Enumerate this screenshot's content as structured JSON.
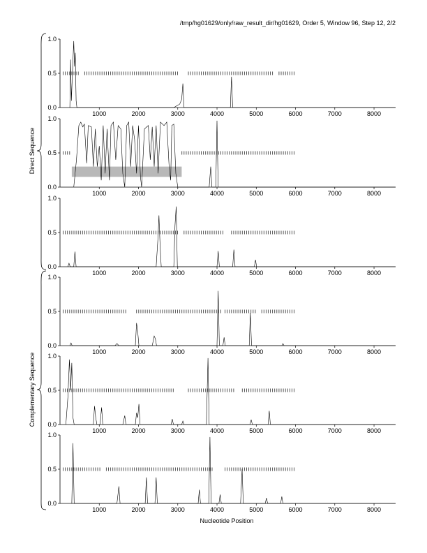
{
  "header": "/tmp/hg01629/only/raw_result_dir/hg01629, Order 5, Window 96, Step 12, 2/2",
  "xlabel": "Nucleotide Position",
  "group_labels": [
    "Direct Sequence",
    "Complementary Sequence"
  ],
  "chart_data": {
    "type": "line",
    "x_ticks": [
      1000,
      2000,
      3000,
      4000,
      5000,
      6000,
      7000,
      8000
    ],
    "y_ticks": [
      "0.0",
      "0.5",
      "1.0"
    ],
    "xlim": [
      0,
      8550
    ],
    "ylim": [
      0,
      1
    ],
    "panels": [
      {
        "group": "Direct Sequence",
        "points": [
          [
            250,
            0
          ],
          [
            270,
            0.7
          ],
          [
            290,
            0.1
          ],
          [
            320,
            0.55
          ],
          [
            350,
            0.97
          ],
          [
            370,
            0.6
          ],
          [
            390,
            0.8
          ],
          [
            410,
            0.1
          ],
          [
            430,
            0
          ],
          [
            2900,
            0
          ],
          [
            3050,
            0.05
          ],
          [
            3100,
            0.12
          ],
          [
            3130,
            0.35
          ],
          [
            3160,
            0
          ],
          [
            4340,
            0
          ],
          [
            4370,
            0.45
          ],
          [
            4400,
            0
          ],
          [
            8550,
            0
          ]
        ],
        "dashes": {
          "from": 80,
          "to": 6000,
          "step": 55,
          "y": 0.5,
          "skip": [
            [
              480,
              600
            ],
            [
              3000,
              3250
            ],
            [
              5450,
              5550
            ]
          ]
        },
        "band": null
      },
      {
        "group": "Direct Sequence",
        "points": [
          [
            350,
            0
          ],
          [
            420,
            0.4
          ],
          [
            480,
            0.9
          ],
          [
            530,
            0.95
          ],
          [
            580,
            0.88
          ],
          [
            620,
            0.92
          ],
          [
            680,
            0.35
          ],
          [
            720,
            0.9
          ],
          [
            800,
            0.88
          ],
          [
            850,
            0.3
          ],
          [
            900,
            0.85
          ],
          [
            950,
            0.3
          ],
          [
            1000,
            0.6
          ],
          [
            1050,
            0.1
          ],
          [
            1100,
            0.9
          ],
          [
            1150,
            0.2
          ],
          [
            1200,
            0.85
          ],
          [
            1260,
            0.1
          ],
          [
            1300,
            0.9
          ],
          [
            1360,
            0.95
          ],
          [
            1420,
            0.4
          ],
          [
            1480,
            0.9
          ],
          [
            1550,
            0.85
          ],
          [
            1600,
            0.2
          ],
          [
            1650,
            0
          ],
          [
            1700,
            0.9
          ],
          [
            1750,
            0.95
          ],
          [
            1800,
            0.3
          ],
          [
            1850,
            0.9
          ],
          [
            1900,
            0.7
          ],
          [
            1950,
            0.2
          ],
          [
            2000,
            0.9
          ],
          [
            2050,
            0.15
          ],
          [
            2080,
            0
          ],
          [
            2150,
            0.85
          ],
          [
            2250,
            0.9
          ],
          [
            2300,
            0.4
          ],
          [
            2350,
            0.88
          ],
          [
            2400,
            0.3
          ],
          [
            2450,
            0.9
          ],
          [
            2500,
            0.2
          ],
          [
            2560,
            0.95
          ],
          [
            2650,
            0.9
          ],
          [
            2720,
            0.95
          ],
          [
            2780,
            0.3
          ],
          [
            2820,
            0.1
          ],
          [
            2850,
            0.9
          ],
          [
            2900,
            0.92
          ],
          [
            2950,
            0.2
          ],
          [
            3000,
            0
          ],
          [
            3800,
            0
          ],
          [
            3840,
            0.3
          ],
          [
            3870,
            0
          ],
          [
            3970,
            0
          ],
          [
            4000,
            0.97
          ],
          [
            4030,
            0
          ],
          [
            8550,
            0
          ]
        ],
        "dashes": {
          "from": 80,
          "to": 6000,
          "step": 55,
          "y": 0.5,
          "skip": [
            [
              300,
              3100
            ]
          ]
        },
        "band": {
          "x0": 300,
          "x1": 3100,
          "y0": 0.15,
          "y1": 0.3
        }
      },
      {
        "group": "Direct Sequence",
        "points": [
          [
            200,
            0
          ],
          [
            230,
            0.05
          ],
          [
            260,
            0
          ],
          [
            350,
            0
          ],
          [
            380,
            0.22
          ],
          [
            410,
            0
          ],
          [
            2450,
            0
          ],
          [
            2500,
            0.45
          ],
          [
            2520,
            0.75
          ],
          [
            2550,
            0.3
          ],
          [
            2580,
            0
          ],
          [
            2900,
            0
          ],
          [
            2930,
            0.6
          ],
          [
            2960,
            0.88
          ],
          [
            2990,
            0
          ],
          [
            4000,
            0
          ],
          [
            4030,
            0.23
          ],
          [
            4060,
            0
          ],
          [
            4400,
            0
          ],
          [
            4430,
            0.25
          ],
          [
            4460,
            0
          ],
          [
            4950,
            0
          ],
          [
            4980,
            0.1
          ],
          [
            5010,
            0
          ],
          [
            8550,
            0
          ]
        ],
        "dashes": {
          "from": 80,
          "to": 6000,
          "step": 55,
          "y": 0.5,
          "skip": [
            [
              3050,
              3150
            ],
            [
              4200,
              4350
            ]
          ]
        },
        "band": null
      },
      {
        "group": "Complementary Sequence",
        "points": [
          [
            250,
            0
          ],
          [
            280,
            0.04
          ],
          [
            310,
            0
          ],
          [
            1400,
            0
          ],
          [
            1450,
            0.03
          ],
          [
            1500,
            0
          ],
          [
            1920,
            0
          ],
          [
            1950,
            0.33
          ],
          [
            1980,
            0.2
          ],
          [
            2010,
            0
          ],
          [
            2350,
            0
          ],
          [
            2400,
            0.14
          ],
          [
            2430,
            0.1
          ],
          [
            2460,
            0
          ],
          [
            4000,
            0
          ],
          [
            4030,
            0.8
          ],
          [
            4060,
            0
          ],
          [
            4150,
            0
          ],
          [
            4180,
            0.12
          ],
          [
            4210,
            0
          ],
          [
            4820,
            0
          ],
          [
            4850,
            0.48
          ],
          [
            4880,
            0
          ],
          [
            5650,
            0
          ],
          [
            5680,
            0.03
          ],
          [
            5710,
            0
          ],
          [
            8550,
            0
          ]
        ],
        "dashes": {
          "from": 80,
          "to": 6000,
          "step": 55,
          "y": 0.5,
          "skip": [
            [
              1700,
              1900
            ],
            [
              4100,
              4200
            ],
            [
              5000,
              5100
            ]
          ]
        },
        "band": null
      },
      {
        "group": "Complementary Sequence",
        "points": [
          [
            150,
            0
          ],
          [
            200,
            0.4
          ],
          [
            240,
            0.95
          ],
          [
            270,
            0.5
          ],
          [
            300,
            0.9
          ],
          [
            330,
            0.1
          ],
          [
            360,
            0
          ],
          [
            850,
            0
          ],
          [
            880,
            0.27
          ],
          [
            910,
            0.1
          ],
          [
            940,
            0
          ],
          [
            1020,
            0
          ],
          [
            1060,
            0.25
          ],
          [
            1090,
            0
          ],
          [
            1600,
            0
          ],
          [
            1650,
            0.13
          ],
          [
            1680,
            0
          ],
          [
            1920,
            0
          ],
          [
            1950,
            0.17
          ],
          [
            1980,
            0.1
          ],
          [
            2010,
            0.3
          ],
          [
            2040,
            0
          ],
          [
            2830,
            0
          ],
          [
            2860,
            0.08
          ],
          [
            2890,
            0
          ],
          [
            3100,
            0
          ],
          [
            3130,
            0.05
          ],
          [
            3160,
            0
          ],
          [
            3730,
            0
          ],
          [
            3770,
            0.97
          ],
          [
            3800,
            0
          ],
          [
            4840,
            0
          ],
          [
            4870,
            0.07
          ],
          [
            4900,
            0
          ],
          [
            5300,
            0
          ],
          [
            5330,
            0.2
          ],
          [
            5360,
            0
          ],
          [
            8550,
            0
          ]
        ],
        "dashes": {
          "from": 80,
          "to": 6000,
          "step": 55,
          "y": 0.5,
          "skip": [
            [
              2900,
              3250
            ],
            [
              4450,
              4600
            ]
          ]
        },
        "band": null
      },
      {
        "group": "Complementary Sequence",
        "points": [
          [
            300,
            0
          ],
          [
            330,
            0.88
          ],
          [
            360,
            0
          ],
          [
            1450,
            0
          ],
          [
            1500,
            0.25
          ],
          [
            1530,
            0
          ],
          [
            2170,
            0
          ],
          [
            2200,
            0.38
          ],
          [
            2230,
            0
          ],
          [
            2420,
            0
          ],
          [
            2450,
            0.38
          ],
          [
            2480,
            0
          ],
          [
            3520,
            0
          ],
          [
            3550,
            0.2
          ],
          [
            3580,
            0
          ],
          [
            3790,
            0
          ],
          [
            3820,
            0.97
          ],
          [
            3850,
            0
          ],
          [
            4050,
            0
          ],
          [
            4080,
            0.13
          ],
          [
            4110,
            0
          ],
          [
            4600,
            0
          ],
          [
            4640,
            0.5
          ],
          [
            4670,
            0
          ],
          [
            5230,
            0
          ],
          [
            5260,
            0.08
          ],
          [
            5290,
            0
          ],
          [
            5620,
            0
          ],
          [
            5650,
            0.1
          ],
          [
            5680,
            0
          ],
          [
            8550,
            0
          ]
        ],
        "dashes": {
          "from": 80,
          "to": 6000,
          "step": 55,
          "y": 0.5,
          "skip": [
            [
              1050,
              1150
            ],
            [
              3900,
              4150
            ]
          ]
        },
        "band": null
      }
    ]
  }
}
